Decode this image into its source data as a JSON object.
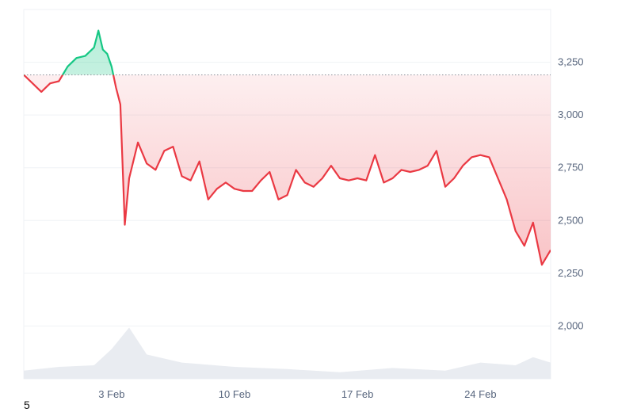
{
  "chart_data": {
    "type": "line",
    "title": "",
    "xlabel": "",
    "ylabel": "",
    "x_ticks": [
      "3 Feb",
      "10 Feb",
      "17 Feb",
      "24 Feb"
    ],
    "y_ticks": [
      "2,000",
      "2,250",
      "2,500",
      "2,750",
      "3,000",
      "3,250"
    ],
    "y_tick_values": [
      2000,
      2250,
      2500,
      2750,
      3000,
      3250
    ],
    "ylim": [
      1750,
      3500
    ],
    "xlim": [
      "2025-01-29",
      "2025-02-28"
    ],
    "baseline": 3190,
    "grid": true,
    "colors": {
      "above": "#16c784",
      "below": "#ea3943",
      "fill_below": "#ea3943",
      "fill_above": "#16c784",
      "volume": "#e9ecf1",
      "grid": "#eff2f5",
      "baseline": "#8a8f99"
    },
    "series": [
      {
        "x": [
          "2025-01-29 00:00",
          "2025-01-29 12:00",
          "2025-01-30 00:00",
          "2025-01-30 12:00",
          "2025-01-31 00:00",
          "2025-01-31 12:00",
          "2025-02-01 00:00",
          "2025-02-01 12:00",
          "2025-02-02 00:00",
          "2025-02-02 06:00",
          "2025-02-02 12:00",
          "2025-02-02 18:00",
          "2025-02-03 00:00",
          "2025-02-03 06:00",
          "2025-02-03 12:00",
          "2025-02-03 18:00",
          "2025-02-04 00:00",
          "2025-02-04 12:00",
          "2025-02-05 00:00",
          "2025-02-05 12:00",
          "2025-02-06 00:00",
          "2025-02-06 12:00",
          "2025-02-07 00:00",
          "2025-02-07 12:00",
          "2025-02-08 00:00",
          "2025-02-08 12:00",
          "2025-02-09 00:00",
          "2025-02-09 12:00",
          "2025-02-10 00:00",
          "2025-02-10 12:00",
          "2025-02-11 00:00",
          "2025-02-11 12:00",
          "2025-02-12 00:00",
          "2025-02-12 12:00",
          "2025-02-13 00:00",
          "2025-02-13 12:00",
          "2025-02-14 00:00",
          "2025-02-14 12:00",
          "2025-02-15 00:00",
          "2025-02-15 12:00",
          "2025-02-16 00:00",
          "2025-02-16 12:00",
          "2025-02-17 00:00",
          "2025-02-17 12:00",
          "2025-02-18 00:00",
          "2025-02-18 12:00",
          "2025-02-19 00:00",
          "2025-02-19 12:00",
          "2025-02-20 00:00",
          "2025-02-20 12:00",
          "2025-02-21 00:00",
          "2025-02-21 12:00",
          "2025-02-22 00:00",
          "2025-02-22 12:00",
          "2025-02-23 00:00",
          "2025-02-23 12:00",
          "2025-02-24 00:00",
          "2025-02-24 12:00",
          "2025-02-25 00:00",
          "2025-02-25 12:00",
          "2025-02-26 00:00",
          "2025-02-26 12:00",
          "2025-02-27 00:00",
          "2025-02-27 12:00",
          "2025-02-28 00:00"
        ],
        "values": [
          3190,
          3150,
          3110,
          3150,
          3160,
          3230,
          3270,
          3280,
          3320,
          3400,
          3310,
          3290,
          3230,
          3130,
          3050,
          2480,
          2700,
          2870,
          2770,
          2740,
          2830,
          2850,
          2710,
          2690,
          2780,
          2600,
          2650,
          2680,
          2650,
          2640,
          2640,
          2690,
          2730,
          2600,
          2620,
          2740,
          2680,
          2660,
          2700,
          2760,
          2700,
          2690,
          2700,
          2690,
          2810,
          2680,
          2700,
          2740,
          2730,
          2740,
          2760,
          2830,
          2660,
          2700,
          2760,
          2800,
          2810,
          2800,
          2700,
          2600,
          2450,
          2380,
          2490,
          2290,
          2360
        ]
      }
    ],
    "volume": {
      "x": [
        "2025-01-29",
        "2025-01-31",
        "2025-02-02",
        "2025-02-03",
        "2025-02-04",
        "2025-02-05",
        "2025-02-07",
        "2025-02-10",
        "2025-02-13",
        "2025-02-16",
        "2025-02-19",
        "2025-02-22",
        "2025-02-24",
        "2025-02-26",
        "2025-02-27",
        "2025-02-28"
      ],
      "values": [
        0.15,
        0.22,
        0.25,
        0.55,
        0.95,
        0.45,
        0.3,
        0.22,
        0.18,
        0.12,
        0.2,
        0.15,
        0.3,
        0.25,
        0.4,
        0.3
      ]
    }
  },
  "footnote": "5"
}
